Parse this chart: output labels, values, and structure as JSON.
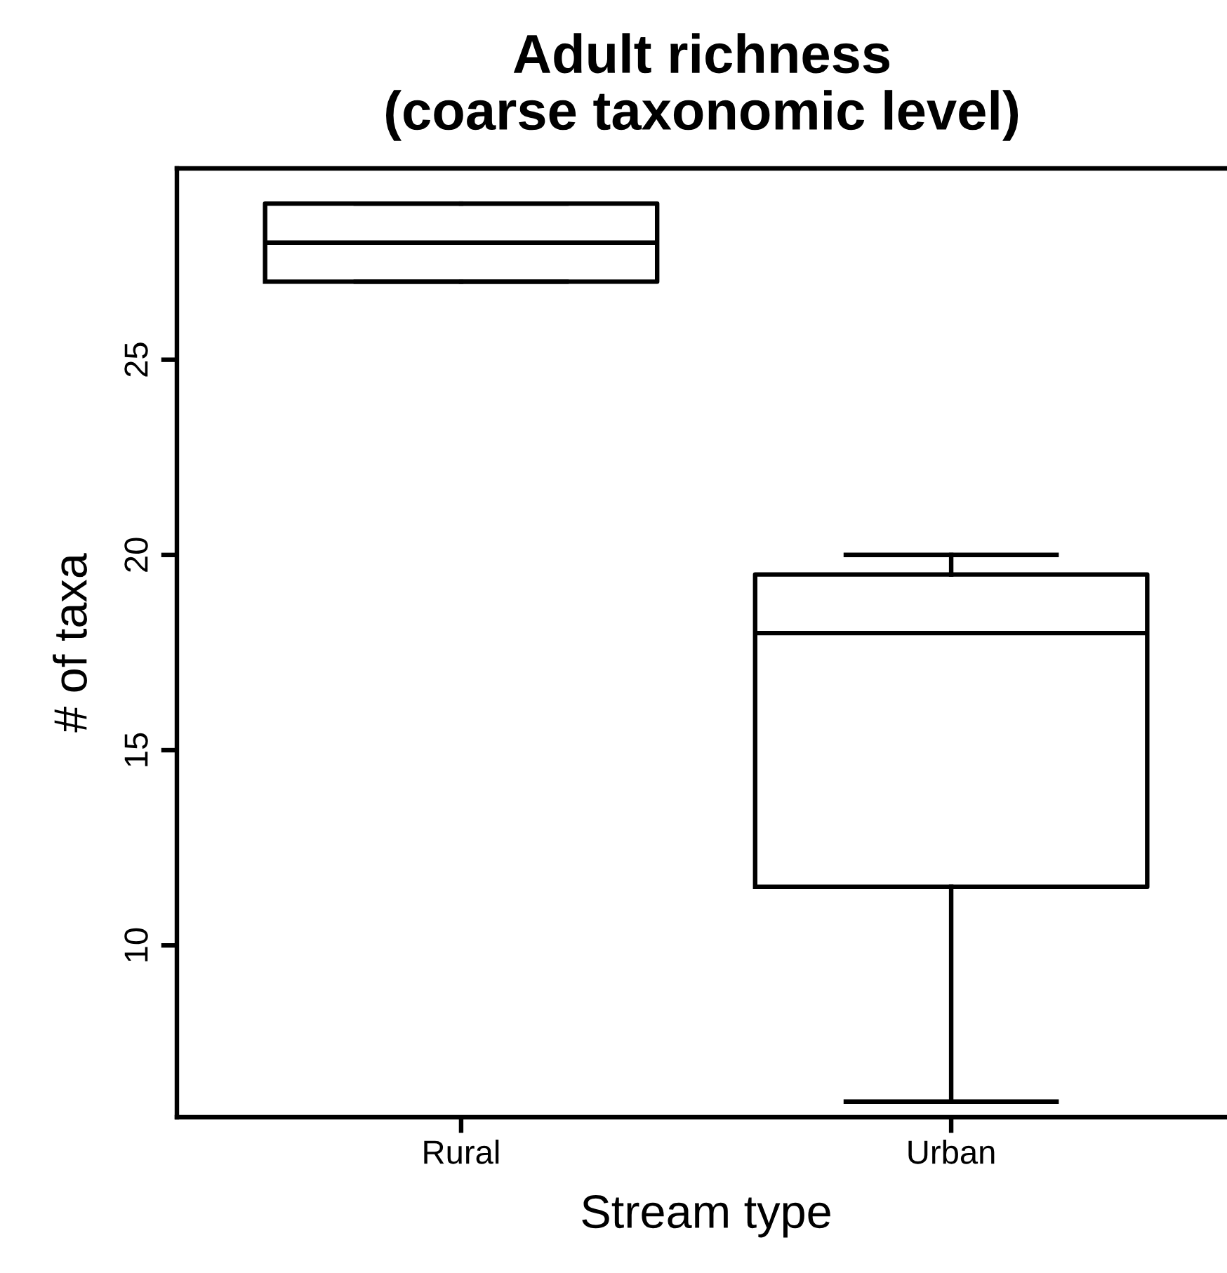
{
  "chart_data": {
    "type": "box",
    "title": "Adult richness\n(coarse taxonomic level)",
    "xlabel": "Stream type",
    "ylabel": "# of taxa",
    "categories": [
      "Rural",
      "Urban"
    ],
    "boxes": [
      {
        "low": 27,
        "q1": 27,
        "median": 28,
        "q3": 29,
        "high": 29
      },
      {
        "low": 6,
        "q1": 11.5,
        "median": 18,
        "q3": 19.5,
        "high": 20
      }
    ],
    "color": "#000000",
    "ylim": [
      5.6,
      29.9
    ],
    "yticks": [
      10,
      15,
      20,
      25
    ],
    "grid": false,
    "legend": false
  }
}
